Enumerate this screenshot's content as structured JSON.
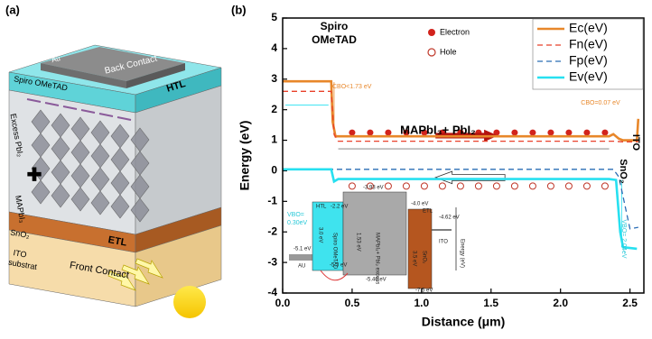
{
  "panel_a": {
    "label": "(a)",
    "layers": {
      "au": "Au",
      "back_contact": "Back Contact",
      "spiro": "Spiro OMeTAD",
      "htl": "HTL",
      "excess": "Excess PbI₂",
      "plus": "✚",
      "mapbi": "MAPbI₃",
      "sno2": "SnO₂",
      "etl": "ETL",
      "substrate": [
        "ITO",
        "substrat"
      ],
      "front_contact": "Front Contact"
    }
  },
  "chart_data": {
    "type": "line",
    "panel_label": "(b)",
    "x_label": "Distance (μm)",
    "y_label": "Energy (eV)",
    "xlim": [
      0,
      2.6
    ],
    "ylim": [
      -4,
      5
    ],
    "xticks": [
      {
        "value": 0,
        "label": "0.0"
      },
      0.5,
      {
        "value": 1,
        "label": "1.0"
      },
      1.5,
      {
        "value": 2,
        "label": "2.0"
      },
      2.5
    ],
    "yticks": [
      -4,
      -3,
      -2,
      -1,
      0,
      1,
      2,
      3,
      4,
      5
    ],
    "legend": "upper right",
    "series": [
      {
        "name": "Ec(eV)",
        "color": "#e8872a",
        "dash": false,
        "x": [
          0,
          0.35,
          0.36,
          0.38,
          2.35,
          2.38,
          2.42,
          2.45,
          2.55,
          2.56
        ],
        "values": [
          2.93,
          2.93,
          1.6,
          1.13,
          1.13,
          1.2,
          1.05,
          1.0,
          1.0,
          1.7
        ]
      },
      {
        "name": "Fn(eV)",
        "color": "#e8402a",
        "dash": true,
        "x": [
          0,
          0.35,
          0.37,
          0.4,
          2.38,
          2.45,
          2.56
        ],
        "values": [
          2.6,
          2.6,
          1.2,
          0.97,
          0.97,
          0.95,
          0.95
        ]
      },
      {
        "name": "Fp(eV)",
        "color": "#2a6db5",
        "dash": true,
        "x": [
          0,
          2.38,
          2.42,
          2.5,
          2.56
        ],
        "values": [
          0.05,
          0.05,
          -0.2,
          -1.9,
          -1.85
        ]
      },
      {
        "name": "Ev(eV)",
        "color": "#27e0f0",
        "dash": false,
        "x": [
          0,
          0.35,
          0.37,
          0.4,
          2.35,
          2.4,
          2.43,
          2.45,
          2.55
        ],
        "values": [
          0.05,
          0.05,
          -0.35,
          -0.27,
          -0.27,
          -0.3,
          -2.0,
          -2.5,
          -2.55
        ]
      }
    ],
    "annotations": [
      "Spiro",
      "OMeTAD",
      "Electron",
      "Hole",
      "CBO<1.73 eV",
      "CBO=0.07 eV",
      "MAPbI₃+ PbI₂",
      "ITO",
      "SnO₂",
      "VBO=",
      "0.30eV",
      "VBO= 2.04eV"
    ],
    "inset_labels": [
      "HTL",
      "-2.2 eV",
      "-3.93 eV",
      "-4.0 eV",
      "ETL",
      "-4.62 eV",
      "ITO",
      "Energy (eV)",
      "-5.1 eV",
      "AU",
      "-5.3 eV",
      "-5.46 eV",
      "-7.5 eV",
      "3.0 eV",
      "Spiro OMeTAD",
      "1.53 eV",
      "MAPbI₃+ PbI₂ excess",
      "3.5 eV",
      "SnO₂"
    ]
  }
}
